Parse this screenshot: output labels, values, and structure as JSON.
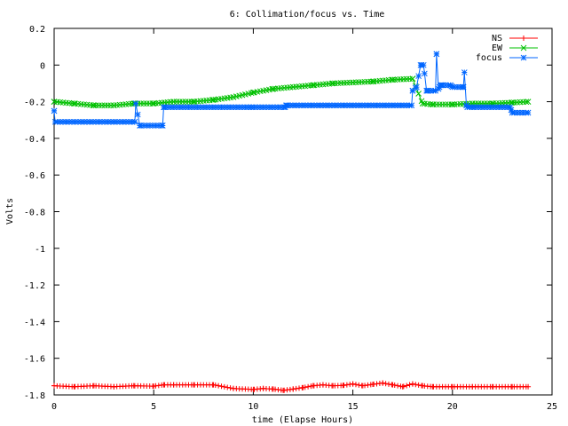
{
  "chart_data": {
    "type": "line",
    "title": "6: Collimation/focus vs. Time",
    "xlabel": "time (Elapse Hours)",
    "ylabel": "Volts",
    "xlim": [
      0,
      25
    ],
    "ylim": [
      -1.8,
      0.2
    ],
    "xticks": [
      "0",
      "5",
      "10",
      "15",
      "20",
      "25"
    ],
    "yticks": [
      "0.2",
      "0",
      "-0.2",
      "-0.4",
      "-0.6",
      "-0.8",
      "-1",
      "-1.2",
      "-1.4",
      "-1.6",
      "-1.8"
    ],
    "grid": false,
    "legend_position": "top-right",
    "series": [
      {
        "name": "NS",
        "color": "#ff0000",
        "marker": "plus",
        "x": [
          0,
          1,
          2,
          3,
          4,
          5,
          5.5,
          6,
          7,
          8,
          9,
          10,
          10.5,
          11,
          11.5,
          12,
          12.5,
          13,
          13.5,
          14,
          14.5,
          15,
          15.5,
          16,
          16.5,
          17,
          17.5,
          18,
          18.5,
          19,
          20,
          21,
          22,
          23,
          23.8
        ],
        "y": [
          -1.75,
          -1.755,
          -1.75,
          -1.755,
          -1.75,
          -1.752,
          -1.745,
          -1.745,
          -1.745,
          -1.745,
          -1.765,
          -1.77,
          -1.765,
          -1.768,
          -1.775,
          -1.768,
          -1.76,
          -1.75,
          -1.745,
          -1.75,
          -1.748,
          -1.74,
          -1.75,
          -1.742,
          -1.735,
          -1.745,
          -1.755,
          -1.74,
          -1.75,
          -1.755,
          -1.755,
          -1.755,
          -1.755,
          -1.755,
          -1.755
        ]
      },
      {
        "name": "EW",
        "color": "#00c000",
        "marker": "cross",
        "x": [
          0,
          1,
          2,
          3,
          4,
          5,
          6,
          7,
          8,
          9,
          10,
          11,
          12,
          13,
          14,
          15,
          16,
          17,
          18,
          18.5,
          19,
          20,
          21,
          22,
          23,
          23.8
        ],
        "y": [
          -0.2,
          -0.21,
          -0.22,
          -0.22,
          -0.21,
          -0.21,
          -0.2,
          -0.2,
          -0.19,
          -0.175,
          -0.15,
          -0.13,
          -0.12,
          -0.11,
          -0.1,
          -0.095,
          -0.09,
          -0.08,
          -0.075,
          -0.21,
          -0.215,
          -0.215,
          -0.21,
          -0.21,
          -0.205,
          -0.2
        ]
      },
      {
        "name": "focus",
        "color": "#0066ff",
        "marker": "star",
        "x": [
          0,
          0.05,
          4.05,
          4.1,
          4.3,
          5.45,
          5.5,
          9.9,
          11.6,
          11.65,
          17.95,
          18.0,
          18.2,
          18.4,
          18.55,
          18.7,
          18.75,
          19.15,
          19.2,
          19.3,
          19.4,
          19.45,
          19.9,
          20.0,
          20.5,
          20.55,
          20.6,
          20.7,
          20.75,
          21.0,
          22.9,
          23.0,
          23.8
        ],
        "y": [
          -0.25,
          -0.31,
          -0.31,
          -0.21,
          -0.33,
          -0.33,
          -0.23,
          -0.23,
          -0.23,
          -0.22,
          -0.22,
          -0.14,
          -0.12,
          0.0,
          0.0,
          -0.14,
          -0.14,
          -0.14,
          0.06,
          -0.13,
          -0.11,
          -0.11,
          -0.11,
          -0.12,
          -0.12,
          -0.12,
          -0.04,
          -0.22,
          -0.23,
          -0.23,
          -0.23,
          -0.26,
          -0.26
        ]
      }
    ]
  }
}
